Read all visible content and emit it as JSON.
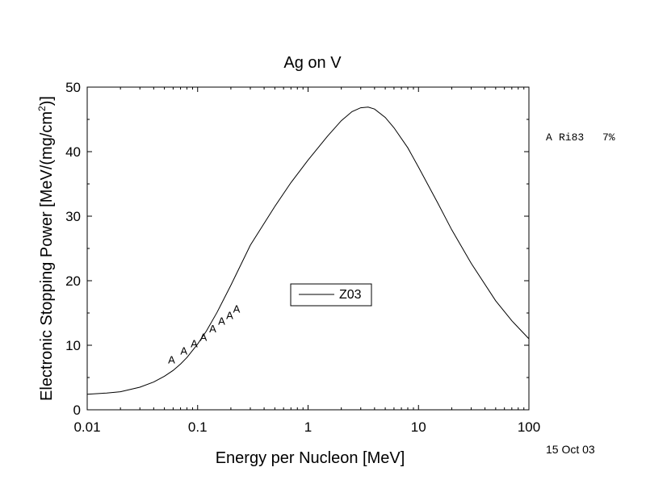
{
  "chart_data": {
    "type": "line",
    "title": "Ag on V",
    "xlabel": "Energy per Nucleon [MeV]",
    "ylabel": "Electronic Stopping Power [MeV/(mg/cm",
    "ylabel_sup": "2",
    "ylabel_close": ")]",
    "x_scale": "log",
    "xlim": [
      0.01,
      100
    ],
    "ylim": [
      0,
      50
    ],
    "x_ticks": [
      0.01,
      0.1,
      1,
      10,
      100
    ],
    "x_tick_labels": [
      "0.01",
      "0.1",
      "1",
      "10",
      "100"
    ],
    "y_ticks": [
      0,
      10,
      20,
      30,
      40,
      50
    ],
    "y_tick_labels": [
      "0",
      "10",
      "20",
      "30",
      "40",
      "50"
    ],
    "grid": false,
    "legend_position": "center",
    "series": [
      {
        "name": "Z03",
        "style": "line",
        "color": "#000000",
        "x": [
          0.01,
          0.015,
          0.02,
          0.03,
          0.04,
          0.05,
          0.06,
          0.07,
          0.08,
          0.1,
          0.12,
          0.15,
          0.2,
          0.3,
          0.5,
          0.7,
          1,
          1.5,
          2,
          2.5,
          3,
          3.5,
          4,
          5,
          6,
          8,
          10,
          15,
          20,
          30,
          50,
          70,
          100
        ],
        "y": [
          2.4,
          2.6,
          2.8,
          3.5,
          4.3,
          5.2,
          6.1,
          7.1,
          8.1,
          10.2,
          12.2,
          15.1,
          19.3,
          25.5,
          31.5,
          35.2,
          38.7,
          42.4,
          44.8,
          46.2,
          46.8,
          46.9,
          46.6,
          45.3,
          43.7,
          40.6,
          37.6,
          32.0,
          27.9,
          22.7,
          16.9,
          13.8,
          11.0
        ]
      },
      {
        "name": "A",
        "style": "marker",
        "marker_text": "A",
        "x": [
          0.058,
          0.075,
          0.093,
          0.113,
          0.137,
          0.165,
          0.195,
          0.225
        ],
        "y": [
          7.8,
          9.2,
          10.3,
          11.3,
          12.6,
          13.8,
          14.7,
          15.7
        ]
      }
    ],
    "reference_note": {
      "marker": "A",
      "label": "Ri83",
      "uncertainty": "7%"
    }
  },
  "legend": {
    "entries": [
      {
        "label": "Z03"
      }
    ]
  },
  "date_stamp": "15 Oct 03"
}
